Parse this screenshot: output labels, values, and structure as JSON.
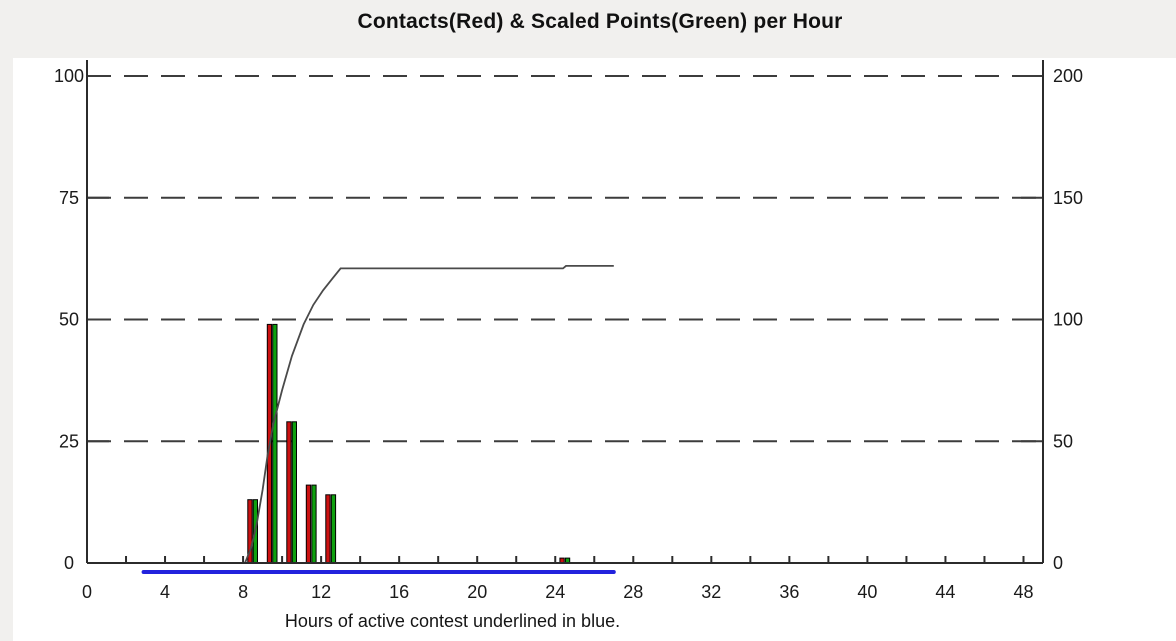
{
  "chart_data": {
    "type": "bar",
    "subtype": "bar+cumulative-line",
    "title": "Contacts(Red) & Scaled Points(Green) per Hour",
    "caption": "Hours of active contest underlined in blue.",
    "x_axis": {
      "min": 0,
      "max": 49,
      "tick_labels": [
        0,
        4,
        8,
        12,
        16,
        20,
        24,
        28,
        32,
        36,
        40,
        44,
        48
      ],
      "minor_tick_step": 2
    },
    "y_axis_left": {
      "min": 0,
      "max": 100,
      "ticks": [
        0,
        25,
        50,
        75,
        100
      ]
    },
    "y_axis_right": {
      "min": 0,
      "max": 200,
      "ticks": [
        0,
        50,
        100,
        150,
        200
      ]
    },
    "gridlines_at_left_values": [
      25,
      50,
      75,
      100
    ],
    "grid_style": "dashed-horizontal",
    "legend_position": "none (encoded in title)",
    "bars": {
      "bin_start_hours": [
        8,
        9,
        10,
        11,
        12,
        24
      ],
      "series": [
        {
          "name": "Contacts (red)",
          "color": "#cc1111",
          "values": [
            13,
            49,
            29,
            16,
            14,
            1
          ]
        },
        {
          "name": "Scaled points (green)",
          "color": "#0fa00f",
          "values": [
            13,
            49,
            29,
            16,
            14,
            1
          ]
        }
      ]
    },
    "cumulative_line": {
      "name": "Cumulative contacts",
      "axis": "right",
      "color": "#4a4a4a",
      "points": [
        [
          8.1,
          0
        ],
        [
          8.4,
          6
        ],
        [
          8.7,
          16
        ],
        [
          9.0,
          30
        ],
        [
          9.25,
          44
        ],
        [
          9.55,
          57
        ],
        [
          10.0,
          71
        ],
        [
          10.5,
          85
        ],
        [
          11.1,
          98
        ],
        [
          11.6,
          106
        ],
        [
          12.1,
          112
        ],
        [
          12.6,
          117
        ],
        [
          13.0,
          121
        ],
        [
          24.4,
          121
        ],
        [
          24.55,
          122
        ],
        [
          27.0,
          122
        ]
      ]
    },
    "active_contest_underline": {
      "start_hour": 2.9,
      "end_hour": 27.0,
      "color": "#2222dd"
    },
    "colors": {
      "background": "#f1f0ee",
      "panel": "#ffffff",
      "axis": "#2b2b2b",
      "gridline": "#3c3c3c",
      "tick_text": "#1a1a1a"
    }
  }
}
